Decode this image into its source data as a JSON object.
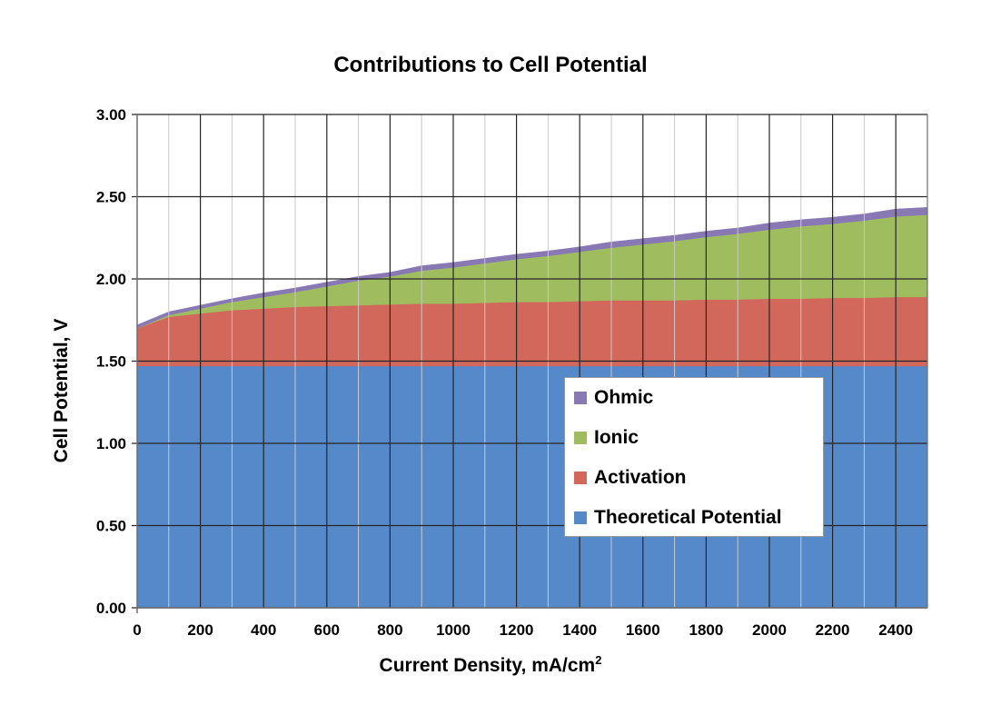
{
  "chart_data": {
    "type": "area",
    "stacked": true,
    "title": "Contributions to Cell Potential",
    "xlabel": "Current Density, mA/cm",
    "xlabel_sup": "2",
    "ylabel": "Cell Potential, V",
    "xlim": [
      0,
      2500
    ],
    "ylim": [
      0,
      3
    ],
    "x_ticks": [
      0,
      200,
      400,
      600,
      800,
      1000,
      1200,
      1400,
      1600,
      1800,
      2000,
      2200,
      2400
    ],
    "y_ticks": [
      "0.00",
      "0.50",
      "1.00",
      "1.50",
      "2.00",
      "2.50",
      "3.00"
    ],
    "grid": true,
    "legend_position": "lower-right",
    "x": [
      0,
      100,
      200,
      300,
      400,
      500,
      600,
      700,
      800,
      900,
      1000,
      1100,
      1200,
      1300,
      1400,
      1500,
      1600,
      1700,
      1800,
      1900,
      2000,
      2100,
      2200,
      2300,
      2400,
      2500
    ],
    "series": [
      {
        "name": "Theoretical Potential",
        "color": "#5689ca",
        "values": [
          1.47,
          1.47,
          1.47,
          1.47,
          1.47,
          1.47,
          1.47,
          1.47,
          1.47,
          1.47,
          1.47,
          1.47,
          1.47,
          1.47,
          1.47,
          1.47,
          1.47,
          1.47,
          1.47,
          1.47,
          1.47,
          1.47,
          1.47,
          1.47,
          1.47,
          1.47
        ]
      },
      {
        "name": "Activation",
        "color": "#d2685b",
        "values": [
          0.23,
          0.3,
          0.32,
          0.34,
          0.35,
          0.36,
          0.365,
          0.37,
          0.375,
          0.38,
          0.38,
          0.385,
          0.39,
          0.39,
          0.395,
          0.4,
          0.4,
          0.4,
          0.405,
          0.405,
          0.41,
          0.41,
          0.415,
          0.415,
          0.42,
          0.42
        ]
      },
      {
        "name": "Ionic",
        "color": "#9fbd5e",
        "values": [
          0.0,
          0.01,
          0.03,
          0.05,
          0.07,
          0.09,
          0.12,
          0.15,
          0.17,
          0.2,
          0.22,
          0.24,
          0.26,
          0.28,
          0.3,
          0.32,
          0.34,
          0.36,
          0.38,
          0.4,
          0.42,
          0.44,
          0.45,
          0.47,
          0.49,
          0.5
        ]
      },
      {
        "name": "Ohmic",
        "color": "#8878b4",
        "values": [
          0.02,
          0.02,
          0.02,
          0.02,
          0.025,
          0.025,
          0.025,
          0.025,
          0.025,
          0.03,
          0.03,
          0.03,
          0.03,
          0.03,
          0.03,
          0.035,
          0.035,
          0.035,
          0.035,
          0.035,
          0.04,
          0.04,
          0.04,
          0.04,
          0.045,
          0.045
        ]
      }
    ],
    "legend_order": [
      "Ohmic",
      "Ionic",
      "Activation",
      "Theoretical Potential"
    ]
  }
}
